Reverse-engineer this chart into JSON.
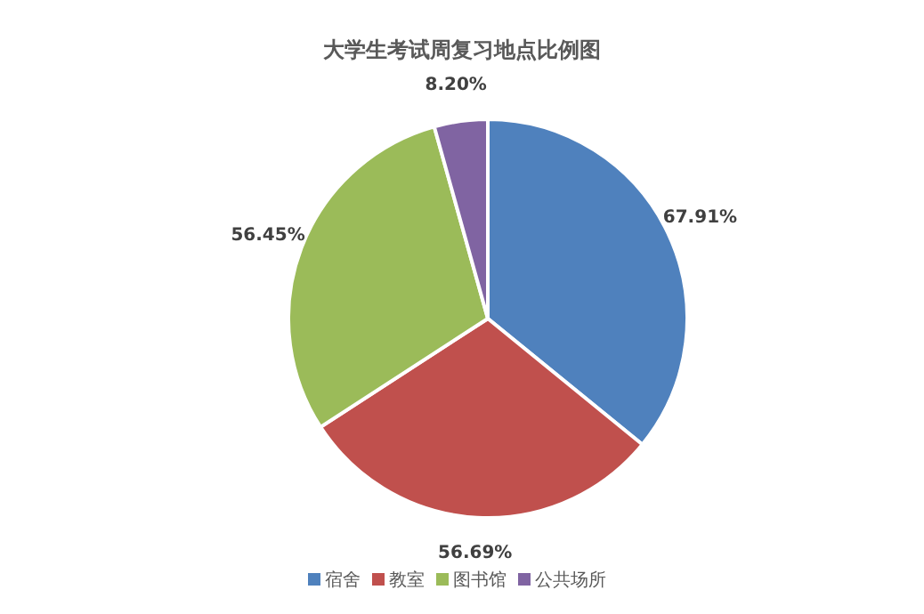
{
  "chart_data": {
    "type": "pie",
    "title": "大学生考试周复习地点比例图",
    "categories": [
      "宿舍",
      "教室",
      "图书馆",
      "公共场所"
    ],
    "values": [
      67.91,
      56.69,
      56.45,
      8.2
    ],
    "value_labels": [
      "67.91%",
      "56.69%",
      "56.45%",
      "8.20%"
    ],
    "colors": [
      "#4f81bd",
      "#c0504d",
      "#9bbb59",
      "#8064a2"
    ],
    "legend": "bottom"
  }
}
